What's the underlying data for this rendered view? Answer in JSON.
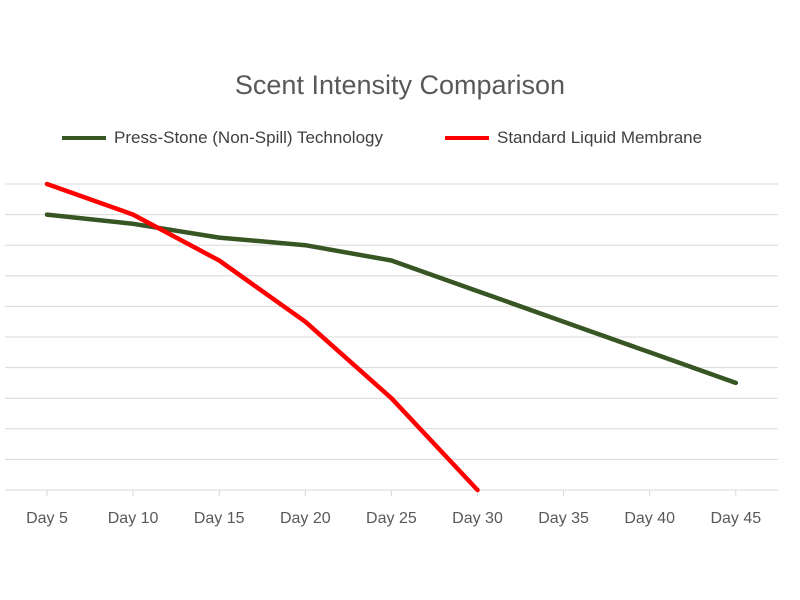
{
  "chart_data": {
    "type": "line",
    "title": "Scent Intensity Comparison",
    "categories": [
      "Day 5",
      "Day 10",
      "Day 15",
      "Day 20",
      "Day 25",
      "Day 30",
      "Day 35",
      "Day 40",
      "Day 45"
    ],
    "ylim": [
      0,
      10
    ],
    "grid": true,
    "legend_position": "top",
    "series": [
      {
        "name": "Press-Stone (Non-Spill) Technology",
        "color": "#375623",
        "values": [
          9.0,
          8.7,
          8.25,
          8.0,
          7.5,
          6.5,
          5.5,
          4.5,
          3.5
        ]
      },
      {
        "name": "Standard Liquid Membrane",
        "color": "#ff0000",
        "values": [
          10.0,
          9.0,
          7.5,
          5.5,
          3.0,
          0.0,
          null,
          null,
          null
        ]
      }
    ]
  }
}
